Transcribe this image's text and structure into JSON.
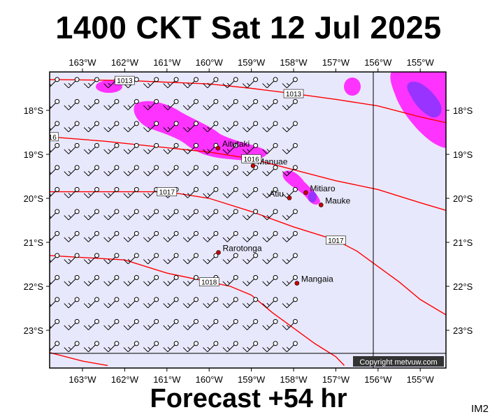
{
  "title": "1400 CKT Sat 12 Jul 2025",
  "forecast": "Forecast +54 hr",
  "badge": "IM2",
  "copyright": "Copyright metvuw.com",
  "colors": {
    "ocean": "#e8e8fc",
    "isobar": "#ff0000",
    "rain_light": "#ff33ff",
    "rain_heavy": "#9933ff",
    "town": "#cc0000"
  },
  "lon_labels": [
    "163°W",
    "162°W",
    "161°W",
    "160°W",
    "159°W",
    "158°W",
    "157°W",
    "156°W",
    "155°W"
  ],
  "lat_labels": [
    "18°S",
    "19°S",
    "20°S",
    "21°S",
    "22°S",
    "23°S"
  ],
  "places": [
    {
      "name": "Aitutaki",
      "lon": -159.79,
      "lat": -18.86
    },
    {
      "name": "Manuae",
      "lon": -158.96,
      "lat": -19.26
    },
    {
      "name": "Mitiaro",
      "lon": -157.71,
      "lat": -19.87
    },
    {
      "name": "Atiu",
      "lon": -158.1,
      "lat": -19.99
    },
    {
      "name": "Mauke",
      "lon": -157.35,
      "lat": -20.15
    },
    {
      "name": "Rarotonga",
      "lon": -159.78,
      "lat": -21.23
    },
    {
      "name": "Mangaia",
      "lon": -157.92,
      "lat": -21.93
    }
  ],
  "isobars": [
    {
      "label": "1013",
      "points": [
        [
          -163.8,
          -17.3
        ],
        [
          -162.0,
          -17.32
        ],
        [
          -160.0,
          -17.4
        ],
        [
          -159.0,
          -17.5
        ],
        [
          -158.0,
          -17.62
        ],
        [
          -157.0,
          -17.75
        ],
        [
          -156.0,
          -17.9
        ],
        [
          -155.0,
          -18.15
        ],
        [
          -154.3,
          -18.3
        ]
      ]
    },
    {
      "label": "1016",
      "points": [
        [
          -163.8,
          -18.6
        ],
        [
          -162.5,
          -18.7
        ],
        [
          -161.5,
          -18.8
        ],
        [
          -160.0,
          -18.95
        ],
        [
          -159.0,
          -19.1
        ],
        [
          -158.0,
          -19.35
        ],
        [
          -157.0,
          -19.6
        ],
        [
          -156.0,
          -19.8
        ],
        [
          -155.0,
          -20.1
        ],
        [
          -154.3,
          -20.3
        ]
      ]
    },
    {
      "label": "1017",
      "points": [
        [
          -163.8,
          -19.85
        ],
        [
          -162.0,
          -19.85
        ],
        [
          -161.0,
          -19.85
        ],
        [
          -160.0,
          -20.0
        ],
        [
          -159.0,
          -20.3
        ],
        [
          -158.0,
          -20.65
        ],
        [
          -157.0,
          -20.95
        ],
        [
          -156.5,
          -21.2
        ],
        [
          -156.0,
          -21.55
        ],
        [
          -155.5,
          -21.9
        ],
        [
          -155.0,
          -22.3
        ],
        [
          -154.3,
          -22.7
        ]
      ]
    },
    {
      "label": "1018",
      "points": [
        [
          -163.8,
          -21.3
        ],
        [
          -162.0,
          -21.4
        ],
        [
          -161.0,
          -21.7
        ],
        [
          -160.0,
          -21.9
        ],
        [
          -159.5,
          -22.0
        ],
        [
          -159.0,
          -22.2
        ],
        [
          -158.5,
          -22.6
        ],
        [
          -158.0,
          -22.95
        ],
        [
          -157.5,
          -23.3
        ],
        [
          -157.0,
          -23.6
        ],
        [
          -156.8,
          -23.8
        ]
      ]
    },
    {
      "label": "",
      "points": [
        [
          -163.8,
          -23.5
        ],
        [
          -163.0,
          -23.7
        ],
        [
          -162.4,
          -23.8
        ]
      ]
    }
  ],
  "barb_grid": {
    "lon_start": -163.6,
    "lon_step": 0.47,
    "cols": 13,
    "lat_start": -17.3,
    "lat_step": 0.5,
    "rows": 13
  },
  "wind": {
    "from_deg": 225,
    "speed_kt": 15
  }
}
